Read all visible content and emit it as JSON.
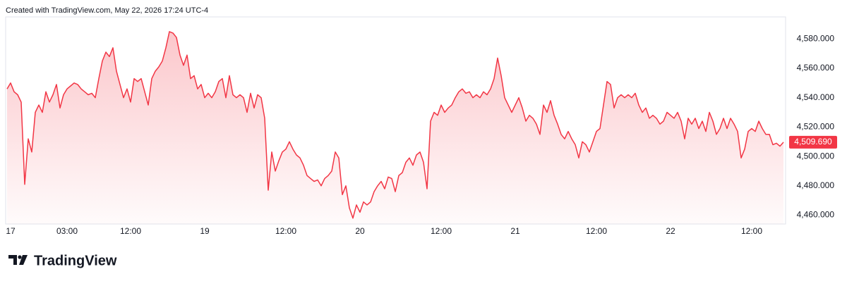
{
  "header": {
    "text": "Created with TradingView.com, May 22, 2026 17:24 UTC-4"
  },
  "footer": {
    "brand": "TradingView"
  },
  "chart_data": {
    "type": "area",
    "color": "#f23645",
    "values": [
      4546,
      4550,
      4544,
      4542,
      4537,
      4481,
      4512,
      4503,
      4530,
      4535,
      4530,
      4544,
      4537,
      4542,
      4549,
      4533,
      4542,
      4546,
      4548,
      4550,
      4549,
      4546,
      4544,
      4542,
      4543,
      4540,
      4553,
      4565,
      4571,
      4568,
      4574,
      4558,
      4549,
      4540,
      4546,
      4537,
      4553,
      4551,
      4553,
      4544,
      4535,
      4553,
      4558,
      4561,
      4565,
      4574,
      4585,
      4584,
      4581,
      4569,
      4562,
      4569,
      4553,
      4555,
      4546,
      4549,
      4540,
      4543,
      4540,
      4544,
      4551,
      4553,
      4540,
      4555,
      4542,
      4540,
      4542,
      4540,
      4530,
      4543,
      4533,
      4542,
      4540,
      4526,
      4477,
      4503,
      4490,
      4497,
      4503,
      4505,
      4510,
      4505,
      4501,
      4499,
      4494,
      4487,
      4485,
      4483,
      4484,
      4480,
      4485,
      4487,
      4490,
      4503,
      4499,
      4474,
      4480,
      4465,
      4458,
      4467,
      4462,
      4469,
      4467,
      4469,
      4476,
      4480,
      4483,
      4478,
      4486,
      4485,
      4476,
      4487,
      4489,
      4496,
      4499,
      4494,
      4501,
      4503,
      4496,
      4478,
      4524,
      4530,
      4528,
      4535,
      4530,
      4533,
      4535,
      4540,
      4544,
      4546,
      4543,
      4544,
      4540,
      4542,
      4540,
      4544,
      4542,
      4546,
      4553,
      4567,
      4555,
      4540,
      4535,
      4530,
      4535,
      4540,
      4533,
      4524,
      4528,
      4526,
      4522,
      4515,
      4535,
      4530,
      4538,
      4528,
      4522,
      4515,
      4512,
      4517,
      4512,
      4508,
      4499,
      4510,
      4508,
      4503,
      4510,
      4517,
      4519,
      4535,
      4551,
      4549,
      4533,
      4540,
      4542,
      4540,
      4542,
      4540,
      4543,
      4535,
      4530,
      4533,
      4526,
      4528,
      4526,
      4522,
      4524,
      4530,
      4528,
      4526,
      4530,
      4524,
      4512,
      4526,
      4522,
      4526,
      4519,
      4524,
      4517,
      4530,
      4524,
      4515,
      4519,
      4526,
      4519,
      4526,
      4522,
      4517,
      4499,
      4505,
      4517,
      4519,
      4517,
      4524,
      4519,
      4515,
      4515,
      4508,
      4509,
      4507,
      4509.69
    ],
    "last_value_label": "4,509.690",
    "ylim": [
      4454,
      4595
    ],
    "yticks": [
      {
        "value": 4460,
        "label": "4,460.000"
      },
      {
        "value": 4480,
        "label": "4,480.000"
      },
      {
        "value": 4500,
        "label": "4,500.000"
      },
      {
        "value": 4520,
        "label": "4,520.000"
      },
      {
        "value": 4540,
        "label": "4,540.000"
      },
      {
        "value": 4560,
        "label": "4,560.000"
      },
      {
        "value": 4580,
        "label": "4,580.000"
      }
    ],
    "xticks": [
      {
        "value": 1,
        "label": "17"
      },
      {
        "value": 17,
        "label": "03:00"
      },
      {
        "value": 35,
        "label": "12:00"
      },
      {
        "value": 56,
        "label": "19"
      },
      {
        "value": 79,
        "label": "12:00"
      },
      {
        "value": 100,
        "label": "20"
      },
      {
        "value": 123,
        "label": "12:00"
      },
      {
        "value": 144,
        "label": "21"
      },
      {
        "value": 167,
        "label": "12:00"
      },
      {
        "value": 188,
        "label": "22"
      },
      {
        "value": 211,
        "label": "12:00"
      }
    ],
    "grid": false
  }
}
